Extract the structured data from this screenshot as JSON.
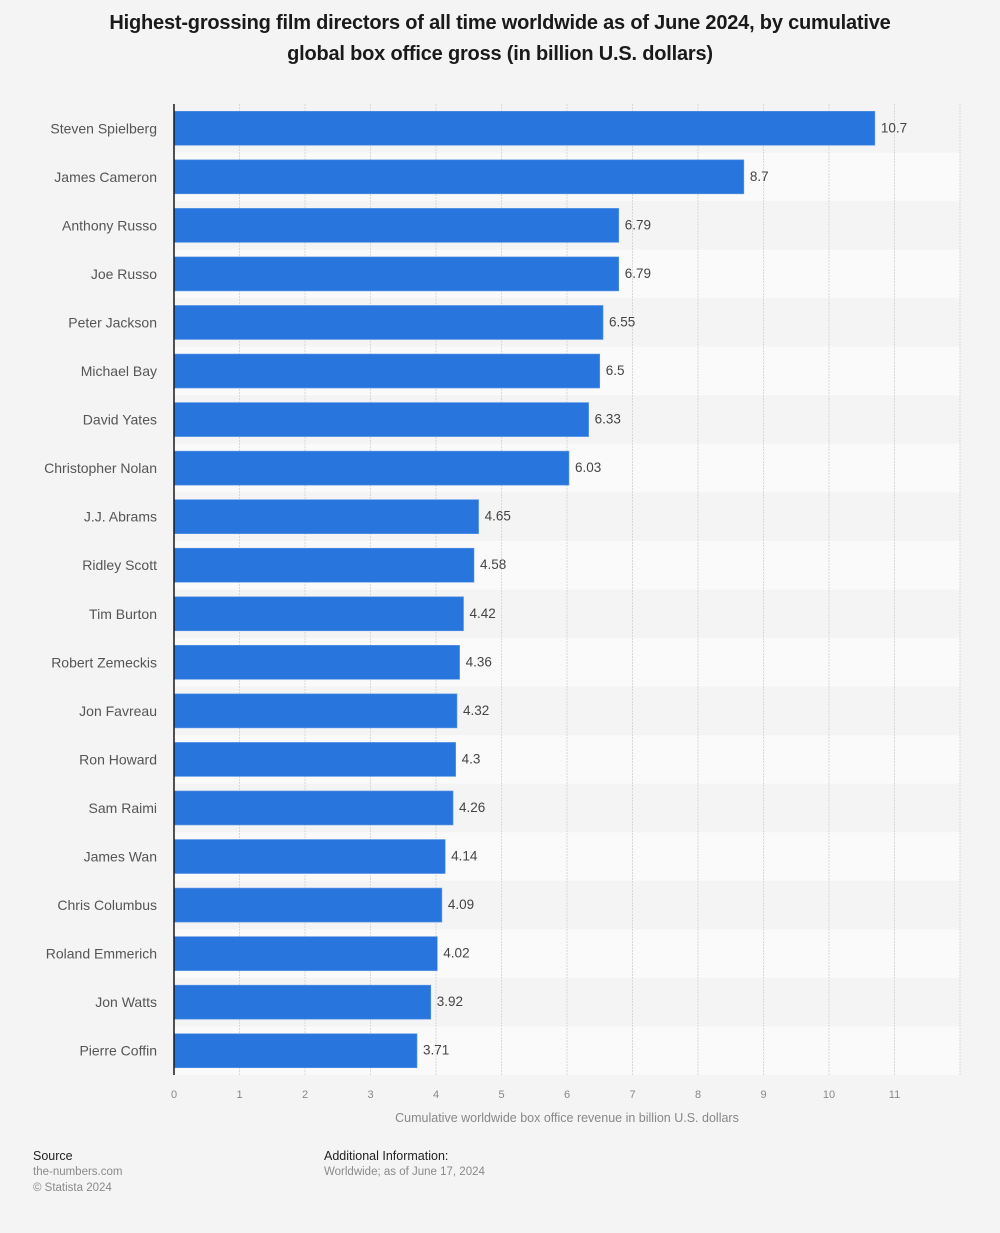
{
  "chart_data": {
    "type": "bar",
    "orientation": "horizontal",
    "title": "Highest-grossing film directors of all time worldwide as of June 2024, by cumulative global box office gross (in billion U.S. dollars)",
    "title_lines": [
      "Highest-grossing film directors of all time worldwide as of June 2024, by cumulative",
      "global box office gross (in billion U.S. dollars)"
    ],
    "categories": [
      "Steven Spielberg",
      "James Cameron",
      "Anthony Russo",
      "Joe Russo",
      "Peter Jackson",
      "Michael Bay",
      "David Yates",
      "Christopher Nolan",
      "J.J. Abrams",
      "Ridley Scott",
      "Tim Burton",
      "Robert Zemeckis",
      "Jon Favreau",
      "Ron Howard",
      "Sam Raimi",
      "James Wan",
      "Chris Columbus",
      "Roland Emmerich",
      "Jon Watts",
      "Pierre Coffin"
    ],
    "values": [
      10.7,
      8.7,
      6.79,
      6.79,
      6.55,
      6.5,
      6.33,
      6.03,
      4.65,
      4.58,
      4.42,
      4.36,
      4.32,
      4.3,
      4.26,
      4.14,
      4.09,
      4.02,
      3.92,
      3.71
    ],
    "value_labels": [
      "10.7",
      "8.7",
      "6.79",
      "6.79",
      "6.55",
      "6.5",
      "6.33",
      "6.03",
      "4.65",
      "4.58",
      "4.42",
      "4.36",
      "4.32",
      "4.3",
      "4.26",
      "4.14",
      "4.09",
      "4.02",
      "3.92",
      "3.71"
    ],
    "xlabel": "Cumulative worldwide box office revenue in billion U.S. dollars",
    "ylabel": "",
    "xlim": [
      0,
      12
    ],
    "x_ticks": [
      "0",
      "1",
      "2",
      "3",
      "4",
      "5",
      "6",
      "7",
      "8",
      "9",
      "10",
      "11"
    ],
    "grid": true,
    "legend": "none",
    "colors": {
      "bar": "#2876dd",
      "row_even": "#f4f4f4",
      "row_odd": "#fafafa"
    }
  },
  "footer": {
    "source_heading": "Source",
    "source_name": "the-numbers.com",
    "copyright": "© Statista 2024",
    "additional_heading": "Additional Information:",
    "additional_text": "Worldwide; as of June 17, 2024"
  }
}
